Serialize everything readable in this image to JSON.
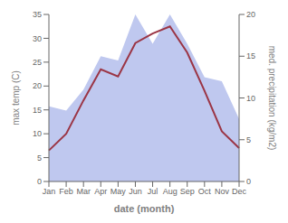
{
  "chart_data": {
    "type": "line",
    "xlabel": "date (month)",
    "ylabel": "max temp (C)",
    "y2label": "med. precipitation (kg/m2)",
    "categories": [
      "Jan",
      "Feb",
      "Mar",
      "Apr",
      "May",
      "Jun",
      "Jul",
      "Aug",
      "Sep",
      "Oct",
      "Nov",
      "Dec"
    ],
    "series": [
      {
        "type": "area",
        "axis": "y2",
        "color": "#bfc8ef",
        "values": [
          9.0,
          8.5,
          11.0,
          15.0,
          14.5,
          20.0,
          16.5,
          20.0,
          16.5,
          12.5,
          12.0,
          7.5
        ]
      },
      {
        "type": "line",
        "color": "#9b3545",
        "values": [
          6.5,
          10.0,
          17.0,
          23.5,
          22.0,
          29.0,
          31.0,
          32.5,
          27.0,
          19.0,
          10.5,
          7.0
        ]
      }
    ],
    "ylim": [
      0,
      35
    ],
    "yticks": [
      0,
      5,
      10,
      15,
      20,
      25,
      30,
      35
    ],
    "y2lim": [
      0,
      20
    ],
    "y2ticks": [
      0,
      5,
      10,
      15,
      20
    ]
  }
}
